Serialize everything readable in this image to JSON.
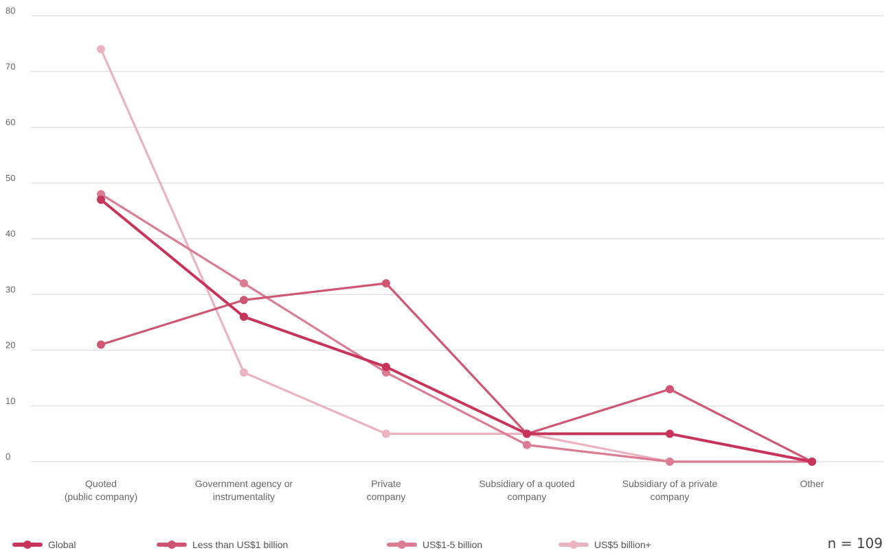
{
  "chart_data": {
    "type": "line",
    "categories": [
      [
        "Quoted",
        "(public company)"
      ],
      [
        "Government agency or",
        "instrumentality"
      ],
      [
        "Private",
        "company"
      ],
      [
        "Subsidiary of a quoted",
        "company"
      ],
      [
        "Subsidiary of a private",
        "company"
      ],
      [
        "Other"
      ]
    ],
    "ylim": [
      0,
      80
    ],
    "yticks": [
      0,
      10,
      20,
      30,
      40,
      50,
      60,
      70,
      80
    ],
    "grid": true,
    "legend_position": "bottom",
    "series": [
      {
        "name": "Global",
        "color": "#c8335a",
        "values": [
          47,
          26,
          17,
          5,
          5,
          0
        ]
      },
      {
        "name": "Less than US$1 billion",
        "color": "#cf5572",
        "values": [
          21,
          29,
          32,
          5,
          13,
          0
        ]
      },
      {
        "name": "US$1-5 billion",
        "color": "#dc7c93",
        "values": [
          48,
          32,
          16,
          3,
          0,
          0
        ]
      },
      {
        "name": "US$5 billion+",
        "color": "#ebb3c0",
        "values": [
          74,
          16,
          5,
          5,
          0,
          0
        ]
      }
    ],
    "sample_note": "n = 109"
  }
}
